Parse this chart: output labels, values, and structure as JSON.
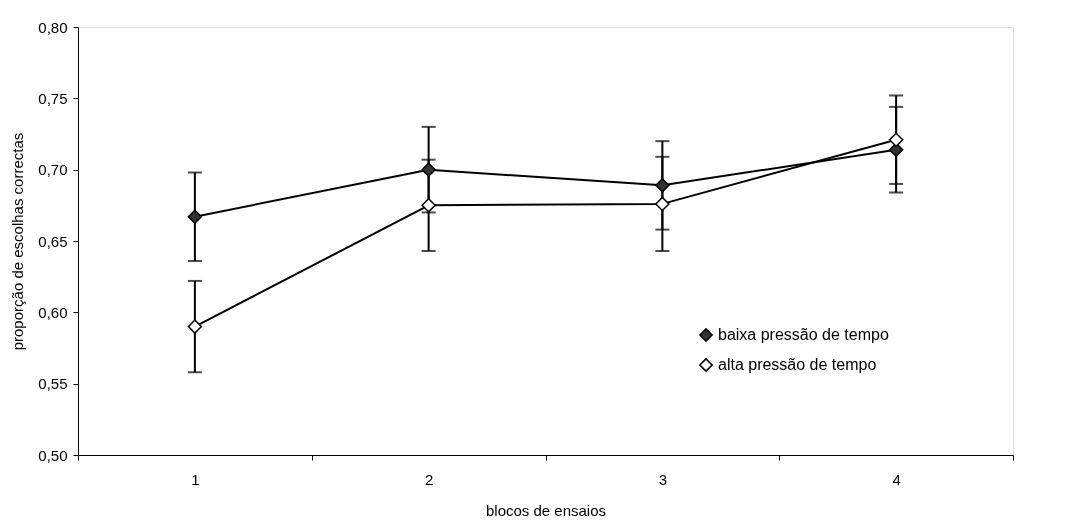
{
  "chart_data": {
    "type": "line",
    "xlabel": "blocos de ensaios",
    "ylabel": "proporção de escolhas correctas",
    "categories": [
      "1",
      "2",
      "3",
      "4"
    ],
    "series": [
      {
        "name": "baixa pressão de tempo",
        "color": "#333333",
        "values": [
          0.667,
          0.7,
          0.689,
          0.714
        ],
        "errors": [
          0.031,
          0.03,
          0.031,
          0.03
        ]
      },
      {
        "name": "alta pressão de tempo",
        "color": "#ffffff",
        "values": [
          0.59,
          0.675,
          0.676,
          0.721
        ],
        "errors": [
          0.032,
          0.032,
          0.033,
          0.031
        ]
      }
    ],
    "ylim": [
      0.5,
      0.8
    ],
    "yticks": [
      {
        "value": 0.5,
        "label": "0,50"
      },
      {
        "value": 0.55,
        "label": "0,55"
      },
      {
        "value": 0.6,
        "label": "0,60"
      },
      {
        "value": 0.65,
        "label": "0,65"
      },
      {
        "value": 0.7,
        "label": "0,70"
      },
      {
        "value": 0.75,
        "label": "0,75"
      },
      {
        "value": 0.8,
        "label": "0,80"
      }
    ],
    "grid": false,
    "legend": "right",
    "marker": "diamond",
    "line_style": "solid"
  }
}
